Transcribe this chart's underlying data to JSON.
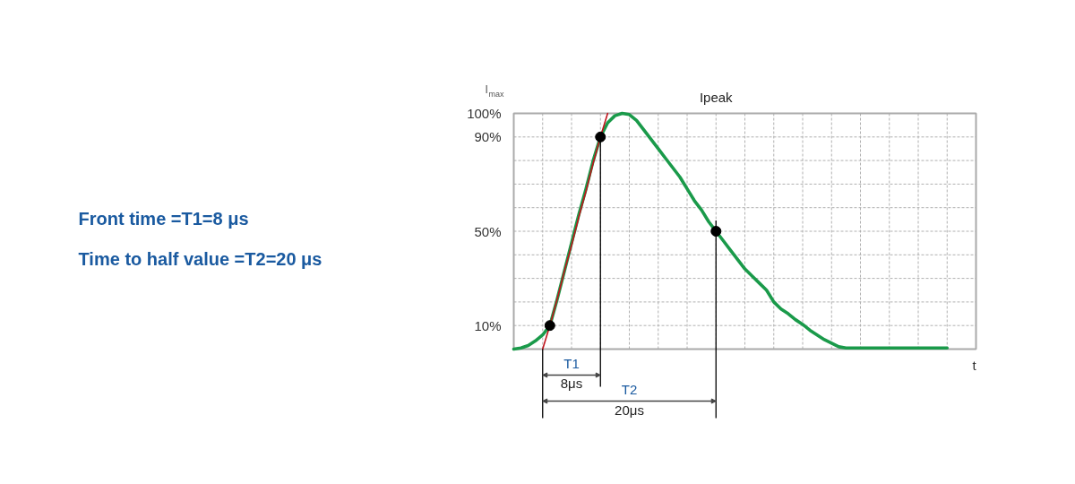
{
  "chart_data": {
    "type": "line",
    "ylabel": "I$_{max}$",
    "xlabel": "t",
    "annotations": [
      "Front time =T1=8 μs",
      "Time to half value =T2=20 μs",
      "Ipeak",
      "T1",
      "8μs",
      "T2",
      "20μs"
    ],
    "categories": [
      null,
      null,
      null,
      null,
      null,
      null,
      null,
      null,
      null,
      null,
      null,
      null,
      null,
      null,
      null,
      null,
      null,
      null,
      null,
      null,
      null,
      null,
      null,
      null,
      null,
      null,
      null,
      null,
      null,
      null,
      null,
      null,
      null,
      null,
      null,
      null,
      null,
      null,
      null,
      null,
      null,
      null,
      null,
      null,
      null,
      null,
      null,
      null,
      null,
      null,
      null,
      null,
      null,
      null,
      null,
      null,
      null,
      null,
      null,
      null,
      null,
      null,
      null,
      null,
      null
    ],
    "series": [
      {
        "color": "#1a9a4a",
        "values": [
          0,
          0.5,
          1.5,
          3.5,
          6,
          10,
          21,
          33,
          45,
          57,
          68,
          80,
          90,
          96,
          99,
          100,
          99.5,
          97,
          93,
          89,
          85,
          81,
          77,
          73,
          68,
          63,
          59,
          54,
          50,
          46,
          42,
          38,
          34,
          31,
          28,
          25,
          20,
          17,
          15,
          12.5,
          10.5,
          8,
          6,
          4,
          2.5,
          1,
          0.5,
          0.5,
          0.5,
          0.5,
          0.5,
          0.5,
          0.5,
          0.5,
          0.5,
          0.5,
          0.5,
          0.5,
          0.5,
          0.5,
          0.5,
          null,
          null,
          null,
          null
        ]
      },
      {
        "type": "line",
        "color": "#c0141c",
        "values": [
          null,
          null,
          null,
          null,
          0,
          10,
          21,
          33,
          44,
          56,
          67,
          79,
          90,
          100,
          null,
          null,
          null,
          null,
          null,
          null,
          null,
          null,
          null,
          null,
          null,
          null,
          null,
          null,
          null,
          null,
          null,
          null,
          null,
          null,
          null,
          null,
          null,
          null,
          null,
          null,
          null,
          null,
          null,
          null,
          null,
          null,
          null,
          null,
          null,
          null,
          null,
          null,
          null,
          null,
          null,
          null,
          null,
          null,
          null,
          null,
          null,
          null,
          null,
          null,
          null
        ]
      },
      {
        "type": "scatter",
        "color": "#000000",
        "marker": "circle",
        "values": [
          null,
          null,
          null,
          null,
          null,
          10,
          null,
          null,
          null,
          null,
          null,
          null,
          90,
          null,
          null,
          null,
          null,
          null,
          null,
          null,
          null,
          null,
          null,
          null,
          null,
          null,
          null,
          null,
          50,
          null,
          null,
          null,
          null,
          null,
          null,
          null,
          null,
          null,
          null,
          null,
          null,
          null,
          null,
          null,
          null,
          null,
          null,
          null,
          null,
          null,
          null,
          null,
          null,
          null,
          null,
          null,
          null,
          null,
          null,
          null,
          null,
          null,
          null,
          null,
          null
        ]
      }
    ],
    "ylim": [
      0,
      100
    ],
    "yticks": [
      {
        "value": 0,
        "label": null
      },
      {
        "value": 10,
        "label": "10%"
      },
      {
        "value": 20,
        "label": null
      },
      {
        "value": 30,
        "label": null
      },
      {
        "value": 40,
        "label": null
      },
      {
        "value": 50,
        "label": "50%"
      },
      {
        "value": 60,
        "label": null
      },
      {
        "value": 70,
        "label": null
      },
      {
        "value": 80,
        "label": null
      },
      {
        "value": 90,
        "label": "90%"
      },
      {
        "value": 100,
        "label": "100%"
      }
    ],
    "grid": true,
    "tick_labels": "y"
  }
}
